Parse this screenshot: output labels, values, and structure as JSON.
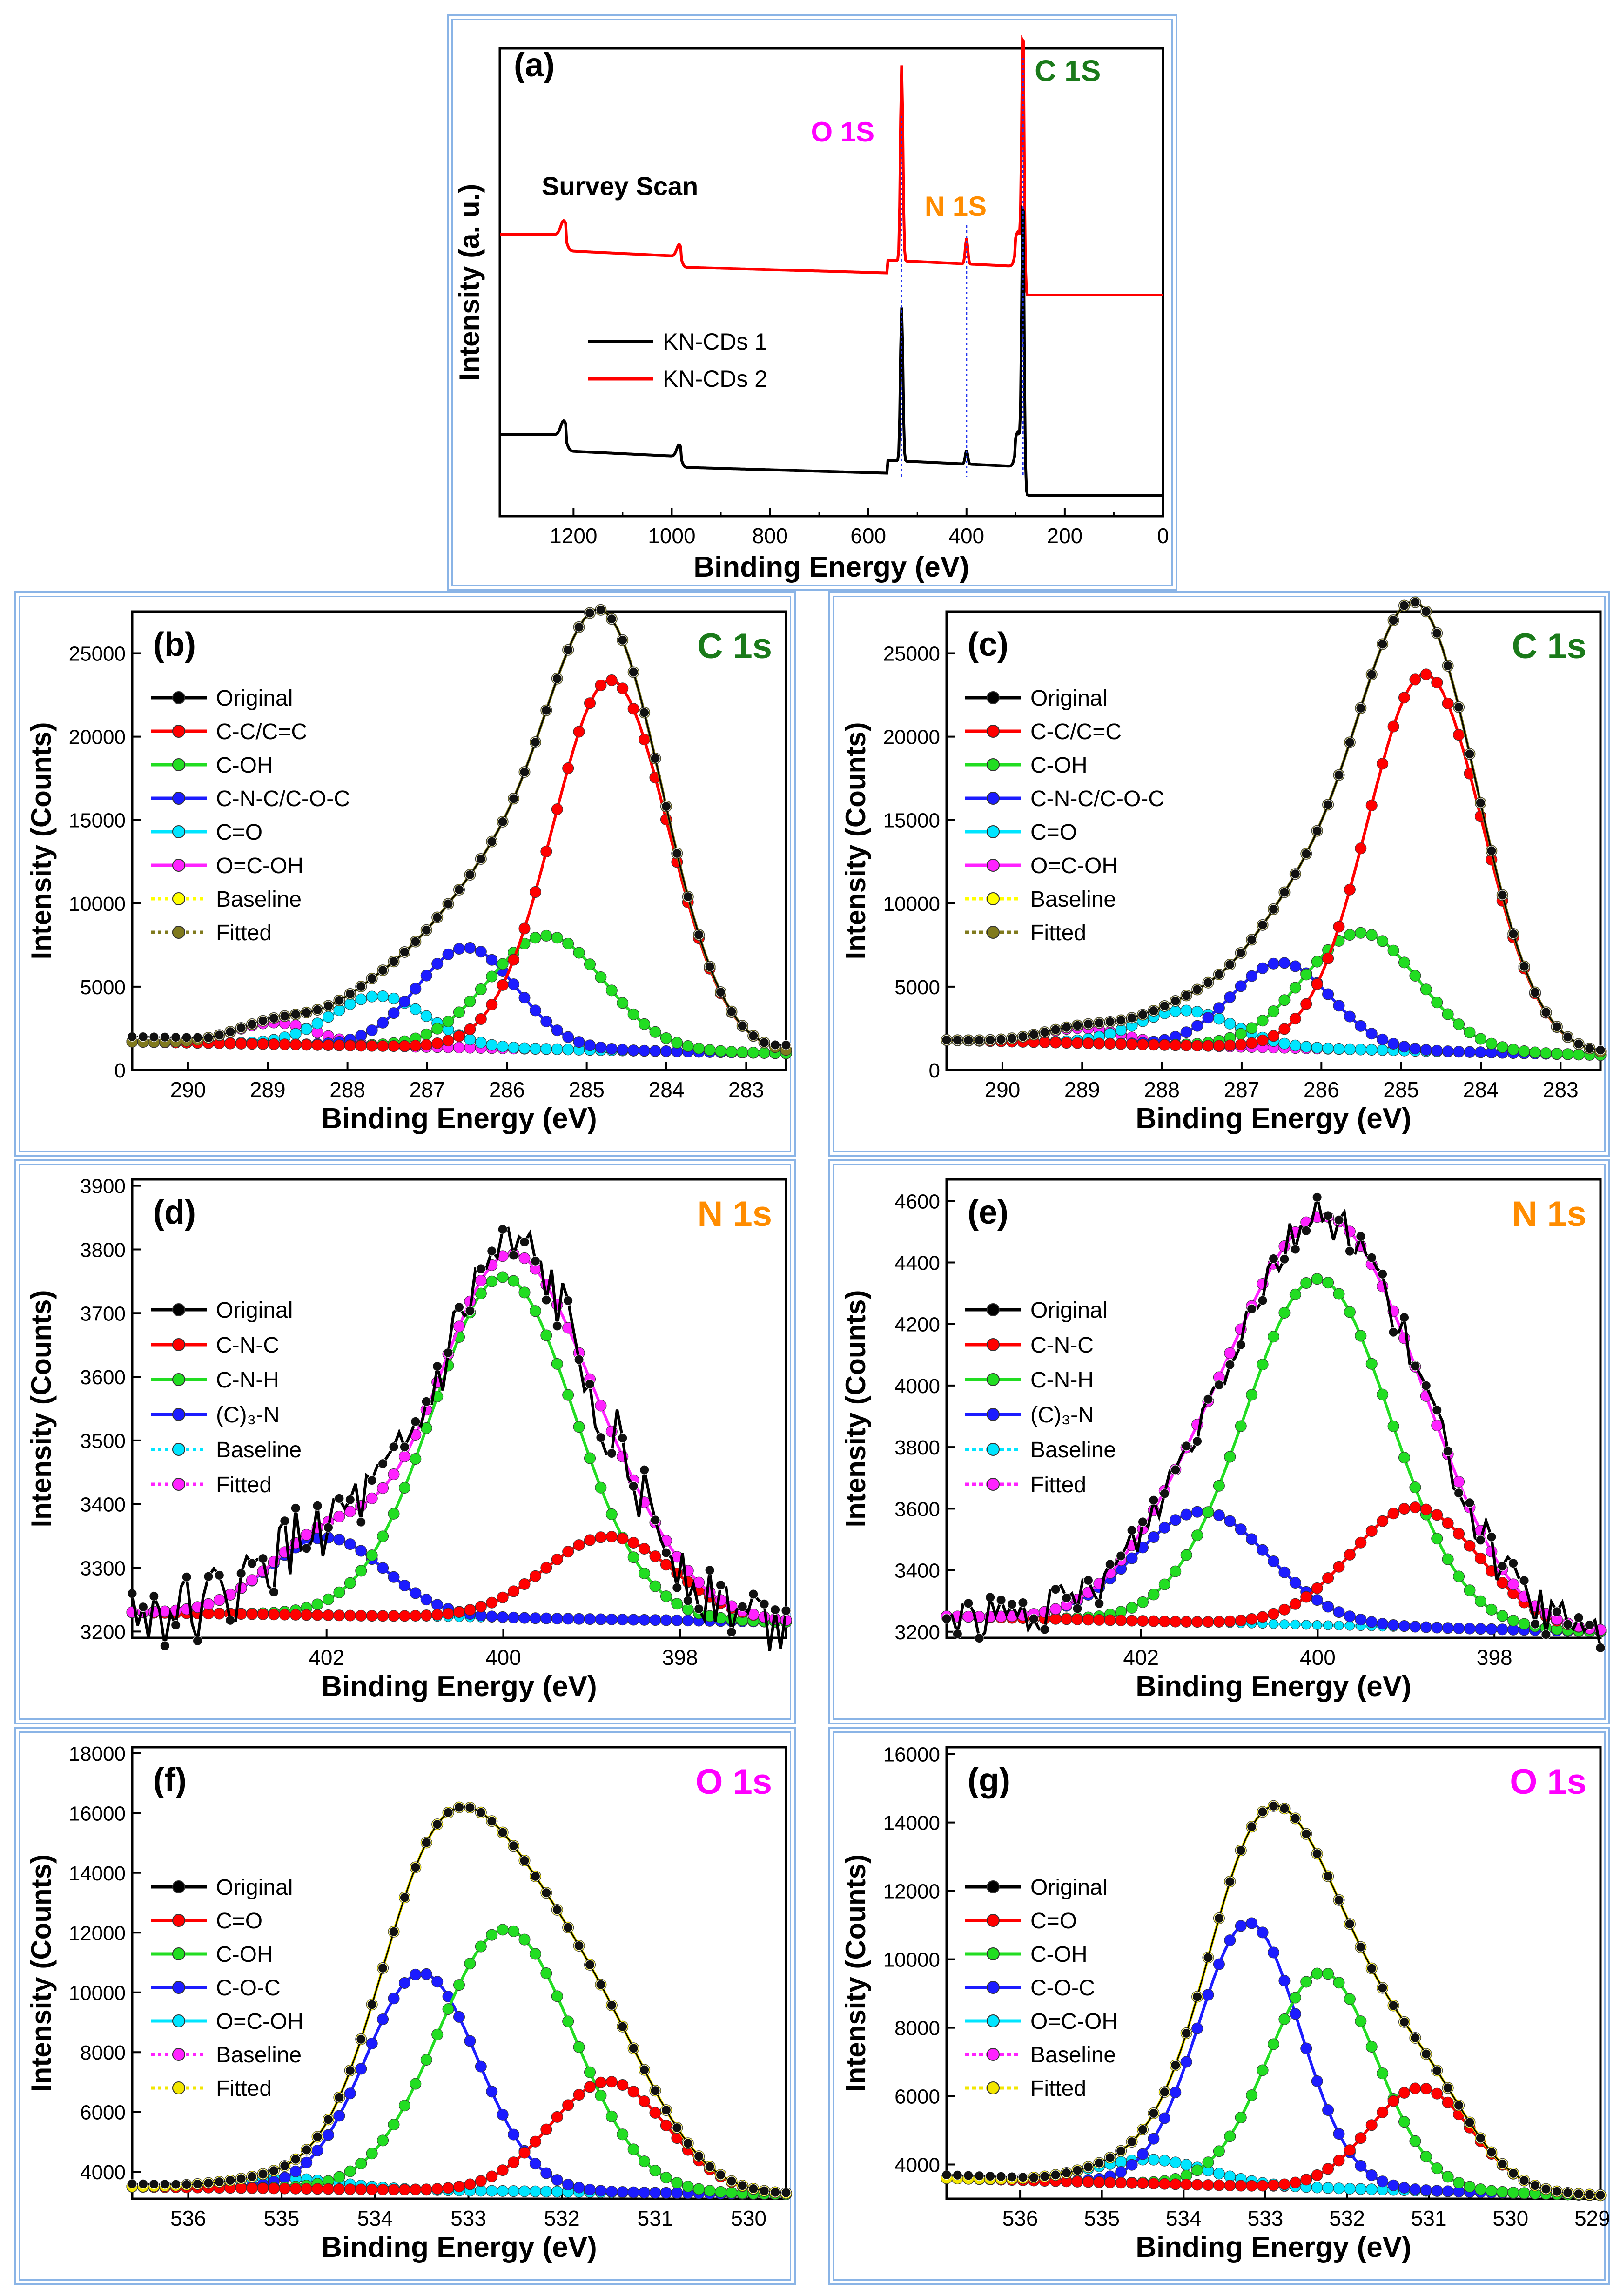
{
  "chart_data": [
    {
      "id": "a",
      "type": "line",
      "label": "(a)",
      "title": "Survey Scan",
      "xlabel": "Binding Energy (eV)",
      "ylabel": "Intensity (a. u.)",
      "xlim": [
        1350,
        0
      ],
      "xticks": [
        1200,
        1000,
        800,
        600,
        400,
        200,
        0
      ],
      "legend": [
        "KN-CDs 1",
        "KN-CDs 2"
      ],
      "peaks": [
        {
          "label": "O 1S",
          "x": 532,
          "color": "#ff00ff"
        },
        {
          "label": "N 1S",
          "x": 400,
          "color": "#ff8c00"
        },
        {
          "label": "C 1S",
          "x": 285,
          "color": "#1a7a1a"
        }
      ],
      "series": [
        {
          "name": "KN-CDs 1",
          "color": "#000000"
        },
        {
          "name": "KN-CDs 2",
          "color": "#ff0000"
        }
      ]
    },
    {
      "id": "b",
      "type": "line",
      "label": "(b)",
      "element": "C 1s",
      "elementColor": "#1a7a1a",
      "xlabel": "Binding Energy (eV)",
      "ylabel": "Intensity (Counts)",
      "xlim": [
        290.7,
        282.5
      ],
      "ylim": [
        0,
        27500
      ],
      "xticks": [
        290,
        289,
        288,
        287,
        286,
        285,
        284,
        283
      ],
      "yticks": [
        0,
        5000,
        10000,
        15000,
        20000,
        25000
      ],
      "baseline": [
        1700,
        1000
      ],
      "original": [
        2000,
        1500
      ],
      "components": [
        {
          "name": "C-C/C=C",
          "color": "#ff0000",
          "center": 284.7,
          "amp": 22200,
          "sigma": 0.72,
          "legend": "C-C/C=C"
        },
        {
          "name": "C-OH",
          "color": "#22dd22",
          "center": 285.5,
          "amp": 6800,
          "sigma": 0.72,
          "legend": "C-OH"
        },
        {
          "name": "C-N-C/C-O-C",
          "color": "#1c1cff",
          "center": 286.5,
          "amp": 6000,
          "sigma": 0.62,
          "legend": "C-N-C/C-O-C"
        },
        {
          "name": "C=O",
          "color": "#00e5ff",
          "center": 287.6,
          "amp": 3000,
          "sigma": 0.6,
          "legend": "C=O"
        },
        {
          "name": "O=C-OH",
          "color": "#ff22ff",
          "center": 288.9,
          "amp": 1300,
          "sigma": 0.5,
          "legend": "O=C-OH"
        }
      ],
      "legend": [
        "Original",
        "C-C/C=C",
        "C-OH",
        "C-N-C/C-O-C",
        "C=O",
        "O=C-OH",
        "Baseline",
        "Fitted"
      ],
      "baselineColor": "#ffff00",
      "fittedColor": "#807a1e"
    },
    {
      "id": "c",
      "type": "line",
      "label": "(c)",
      "element": "C 1s",
      "elementColor": "#1a7a1a",
      "xlabel": "Binding Energy (eV)",
      "ylabel": "Intensity (Counts)",
      "xlim": [
        290.7,
        282.5
      ],
      "ylim": [
        0,
        27500
      ],
      "xticks": [
        290,
        289,
        288,
        287,
        286,
        285,
        284,
        283
      ],
      "yticks": [
        0,
        5000,
        10000,
        15000,
        20000,
        25000
      ],
      "baseline": [
        1800,
        900
      ],
      "original": [
        1800,
        1200
      ],
      "components": [
        {
          "name": "C-C/C=C",
          "color": "#ff0000",
          "center": 284.7,
          "amp": 22600,
          "sigma": 0.72,
          "legend": "C-C/C=C"
        },
        {
          "name": "C-OH",
          "color": "#22dd22",
          "center": 285.5,
          "amp": 7000,
          "sigma": 0.72,
          "legend": "C-OH"
        },
        {
          "name": "C-N-C/C-O-C",
          "color": "#1c1cff",
          "center": 286.5,
          "amp": 5100,
          "sigma": 0.62,
          "legend": "C-N-C/C-O-C"
        },
        {
          "name": "C=O",
          "color": "#00e5ff",
          "center": 287.7,
          "amp": 2100,
          "sigma": 0.6,
          "legend": "C=O"
        },
        {
          "name": "O=C-OH",
          "color": "#ff22ff",
          "center": 289.0,
          "amp": 900,
          "sigma": 0.5,
          "legend": "O=C-OH"
        }
      ],
      "legend": [
        "Original",
        "C-C/C=C",
        "C-OH",
        "C-N-C/C-O-C",
        "C=O",
        "O=C-OH",
        "Baseline",
        "Fitted"
      ],
      "baselineColor": "#ffff00",
      "fittedColor": "#807a1e"
    },
    {
      "id": "d",
      "type": "line",
      "label": "(d)",
      "element": "N 1s",
      "elementColor": "#ff8c00",
      "xlabel": "Binding Energy (eV)",
      "ylabel": "Intensity (Counts)",
      "xlim": [
        404.2,
        396.8
      ],
      "ylim": [
        3190,
        3910
      ],
      "xticks": [
        402,
        400,
        398
      ],
      "yticks": [
        3200,
        3300,
        3400,
        3500,
        3600,
        3700,
        3800,
        3900
      ],
      "baseline": [
        3230,
        3215
      ],
      "components": [
        {
          "name": "C-N-C",
          "color": "#ff0000",
          "center": 398.8,
          "amp": 130,
          "sigma": 0.72,
          "legend": "C-N-C"
        },
        {
          "name": "C-N-H",
          "color": "#22dd22",
          "center": 400.0,
          "amp": 535,
          "sigma": 0.8,
          "legend": "C-N-H"
        },
        {
          "name": "(C)3-N",
          "color": "#1c1cff",
          "center": 402.0,
          "amp": 122,
          "sigma": 0.65,
          "legend": "(C)₃-N"
        }
      ],
      "legend": [
        "Original",
        "C-N-C",
        "C-N-H",
        "(C)₃-N",
        "Baseline",
        "Fitted"
      ],
      "baselineColor": "#00e5ff",
      "fittedColor": "#ff22ff",
      "noise": 55
    },
    {
      "id": "e",
      "type": "line",
      "label": "(e)",
      "element": "N 1s",
      "elementColor": "#ff8c00",
      "xlabel": "Binding Energy (eV)",
      "ylabel": "Intensity (Counts)",
      "xlim": [
        404.2,
        396.8
      ],
      "ylim": [
        3180,
        4670
      ],
      "xticks": [
        402,
        400,
        398
      ],
      "yticks": [
        3200,
        3400,
        3600,
        3800,
        4000,
        4200,
        4400,
        4600
      ],
      "baseline": [
        3250,
        3200
      ],
      "components": [
        {
          "name": "C-N-C",
          "color": "#ff0000",
          "center": 398.9,
          "amp": 390,
          "sigma": 0.72,
          "legend": "C-N-C"
        },
        {
          "name": "C-N-H",
          "color": "#22dd22",
          "center": 400.0,
          "amp": 1125,
          "sigma": 0.82,
          "legend": "C-N-H"
        },
        {
          "name": "(C)3-N",
          "color": "#1c1cff",
          "center": 401.3,
          "amp": 360,
          "sigma": 0.75,
          "legend": "(C)₃-N"
        }
      ],
      "legend": [
        "Original",
        "C-N-C",
        "C-N-H",
        "(C)₃-N",
        "Baseline",
        "Fitted"
      ],
      "baselineColor": "#00e5ff",
      "fittedColor": "#ff22ff",
      "noise": 70
    },
    {
      "id": "f",
      "type": "line",
      "label": "(f)",
      "element": "O 1s",
      "elementColor": "#ff00ff",
      "xlabel": "Binding Energy (eV)",
      "ylabel": "Intensity (Counts)",
      "xlim": [
        536.6,
        529.6
      ],
      "ylim": [
        3100,
        18200
      ],
      "xticks": [
        536,
        535,
        534,
        533,
        532,
        531,
        530
      ],
      "yticks": [
        4000,
        6000,
        8000,
        10000,
        12000,
        14000,
        16000,
        18000
      ],
      "baseline": [
        3500,
        3250
      ],
      "original": [
        3600,
        3300
      ],
      "components": [
        {
          "name": "C=O",
          "color": "#ff0000",
          "center": 531.5,
          "amp": 3700,
          "sigma": 0.62,
          "legend": "C=O"
        },
        {
          "name": "C-OH",
          "color": "#22dd22",
          "center": 532.6,
          "amp": 8750,
          "sigma": 0.72,
          "legend": "C-OH"
        },
        {
          "name": "C-O-C",
          "color": "#1c1cff",
          "center": 533.5,
          "amp": 7250,
          "sigma": 0.6,
          "legend": "C-O-C"
        },
        {
          "name": "O=C-OH",
          "color": "#00e5ff",
          "center": 535.0,
          "amp": 350,
          "sigma": 0.6,
          "legend": "O=C-OH"
        }
      ],
      "legend": [
        "Original",
        "C=O",
        "C-OH",
        "C-O-C",
        "O=C-OH",
        "Baseline",
        "Fitted"
      ],
      "baselineColor": "#ff22ff",
      "fittedColor": "#f2e600"
    },
    {
      "id": "g",
      "type": "line",
      "label": "(g)",
      "element": "O 1s",
      "elementColor": "#ff00ff",
      "xlabel": "Binding Energy (eV)",
      "ylabel": "Intensity (Counts)",
      "xlim": [
        536.9,
        528.9
      ],
      "ylim": [
        3000,
        16200
      ],
      "xticks": [
        536,
        535,
        534,
        533,
        532,
        531,
        530,
        529
      ],
      "yticks": [
        4000,
        6000,
        8000,
        10000,
        12000,
        14000,
        16000
      ],
      "baseline": [
        3600,
        3100
      ],
      "original": [
        3700,
        3100
      ],
      "components": [
        {
          "name": "C=O",
          "color": "#ff0000",
          "center": 531.1,
          "amp": 3000,
          "sigma": 0.62,
          "legend": "C=O"
        },
        {
          "name": "C-OH",
          "color": "#22dd22",
          "center": 532.3,
          "amp": 6300,
          "sigma": 0.66,
          "legend": "C-OH"
        },
        {
          "name": "C-O-C",
          "color": "#1c1cff",
          "center": 533.2,
          "amp": 7700,
          "sigma": 0.62,
          "legend": "C-O-C"
        },
        {
          "name": "O=C-OH",
          "color": "#00e5ff",
          "center": 534.4,
          "amp": 700,
          "sigma": 0.7,
          "legend": "O=C-OH"
        }
      ],
      "legend": [
        "Original",
        "C=O",
        "C-OH",
        "C-O-C",
        "O=C-OH",
        "Baseline",
        "Fitted"
      ],
      "baselineColor": "#ff22ff",
      "fittedColor": "#f2e600"
    }
  ]
}
